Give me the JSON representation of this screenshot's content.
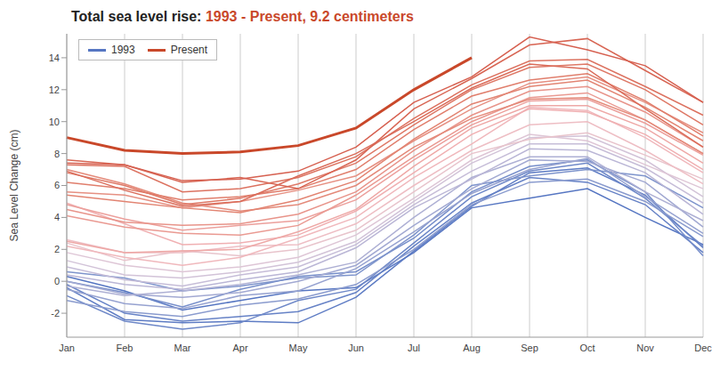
{
  "chart_data": {
    "type": "line",
    "title": "Total sea level rise: 1993 - Present, 9.2 centimeters",
    "y_label": "Sea Level Change (cm)",
    "categories": [
      "Jan",
      "Feb",
      "Mar",
      "Apr",
      "May",
      "Jun",
      "Jul",
      "Aug",
      "Sep",
      "Oct",
      "Nov",
      "Dec"
    ],
    "ylim": [
      -3.5,
      15.5
    ],
    "yticks": [
      -2,
      0,
      2,
      4,
      6,
      8,
      10,
      12,
      14
    ],
    "grid": true,
    "legend": "upper left",
    "series": [
      {
        "name": "1993",
        "color": "#5676c2",
        "values": [
          0.3,
          -0.6,
          -1.8,
          -1.2,
          -0.6,
          -0.4,
          1.8,
          4.6,
          5.2,
          5.8,
          4.0,
          2.3
        ]
      },
      {
        "color": "#5e7cc4",
        "values": [
          -0.4,
          -2.4,
          -2.6,
          -2.5,
          -2.6,
          -1.0,
          1.9,
          4.7,
          6.8,
          7.1,
          5.4,
          2.1
        ]
      },
      {
        "color": "#6682c6",
        "values": [
          -0.2,
          -2.0,
          -2.5,
          -2.2,
          -1.9,
          -0.7,
          2.2,
          4.9,
          6.5,
          6.2,
          4.8,
          1.8
        ]
      },
      {
        "color": "#6e88c8",
        "values": [
          -0.9,
          -2.5,
          -3.0,
          -2.6,
          -1.2,
          -0.5,
          2.4,
          5.3,
          6.9,
          7.4,
          5.2,
          2.2
        ]
      },
      {
        "color": "#768eca",
        "values": [
          0.0,
          -0.7,
          -1.6,
          -0.5,
          0.3,
          0.6,
          2.7,
          5.6,
          7.2,
          7.6,
          5.6,
          1.6
        ]
      },
      {
        "color": "#7e94cc",
        "values": [
          0.6,
          0.2,
          -0.6,
          -0.3,
          0.2,
          0.4,
          2.9,
          6.0,
          6.6,
          7.0,
          6.6,
          4.6
        ]
      },
      {
        "color": "#8a9bce",
        "values": [
          -1.2,
          -1.9,
          -2.2,
          -1.5,
          -1.1,
          -0.2,
          2.0,
          4.8,
          6.2,
          6.4,
          5.0,
          2.8
        ]
      },
      {
        "color": "#96a2d0",
        "values": [
          -0.5,
          -1.4,
          -1.7,
          -0.9,
          -0.6,
          0.8,
          3.1,
          5.5,
          7.0,
          7.7,
          5.3,
          3.0
        ]
      },
      {
        "color": "#a2a9d2",
        "values": [
          0.0,
          -0.8,
          -1.0,
          -0.7,
          0.0,
          1.0,
          3.5,
          5.8,
          7.6,
          7.5,
          6.2,
          3.4
        ]
      },
      {
        "color": "#aeb0d4",
        "values": [
          -0.3,
          -0.9,
          -0.6,
          -0.2,
          0.4,
          1.2,
          4.0,
          6.5,
          7.8,
          7.8,
          5.6,
          3.8
        ]
      },
      {
        "color": "#bab6d6",
        "values": [
          0.4,
          -0.2,
          -0.5,
          0.1,
          0.6,
          2.1,
          4.6,
          6.4,
          8.3,
          8.2,
          6.8,
          4.2
        ]
      },
      {
        "color": "#c6bdd8",
        "values": [
          0.9,
          0.1,
          -0.3,
          0.4,
          0.9,
          2.3,
          4.8,
          6.9,
          8.6,
          8.6,
          7.1,
          4.9
        ]
      },
      {
        "color": "#d2c3d8",
        "values": [
          1.3,
          0.4,
          0.2,
          0.6,
          1.2,
          2.5,
          5.0,
          7.4,
          9.0,
          9.1,
          7.6,
          5.3
        ]
      },
      {
        "color": "#dec6d6",
        "values": [
          1.8,
          1.0,
          0.6,
          0.9,
          1.5,
          2.9,
          5.2,
          7.6,
          9.2,
          8.8,
          7.3,
          5.8
        ]
      },
      {
        "color": "#e8c4cc",
        "values": [
          2.4,
          1.3,
          1.9,
          1.6,
          2.0,
          3.2,
          5.6,
          8.0,
          8.9,
          9.3,
          7.9,
          6.4
        ]
      },
      {
        "color": "#eebec4",
        "values": [
          2.6,
          1.8,
          1.8,
          2.2,
          2.3,
          3.6,
          6.0,
          8.2,
          9.8,
          10.0,
          8.2,
          6.1
        ]
      },
      {
        "color": "#f0b8bc",
        "values": [
          2.2,
          1.5,
          1.0,
          1.5,
          2.7,
          4.0,
          6.5,
          8.6,
          10.9,
          10.7,
          9.0,
          6.8
        ]
      },
      {
        "color": "#f0b0b2",
        "values": [
          4.9,
          3.6,
          2.3,
          2.4,
          2.9,
          4.4,
          6.8,
          9.2,
          10.8,
          10.6,
          9.2,
          7.0
        ]
      },
      {
        "color": "#eea8a6",
        "values": [
          2.5,
          1.8,
          1.9,
          2.0,
          3.1,
          4.5,
          7.2,
          9.6,
          11.0,
          11.0,
          9.6,
          7.4
        ]
      },
      {
        "color": "#eca09c",
        "values": [
          4.8,
          3.9,
          3.2,
          3.5,
          3.8,
          5.1,
          7.6,
          9.8,
          11.3,
          11.4,
          9.9,
          7.9
        ]
      },
      {
        "color": "#ea9a92",
        "values": [
          4.1,
          3.4,
          3.0,
          2.9,
          3.5,
          5.4,
          7.8,
          10.0,
          11.5,
          11.8,
          10.1,
          8.0
        ]
      },
      {
        "color": "#e8948a",
        "values": [
          4.5,
          3.7,
          3.5,
          3.6,
          4.2,
          5.6,
          8.2,
          10.4,
          11.9,
          12.2,
          10.6,
          8.4
        ]
      },
      {
        "color": "#e69082",
        "values": [
          5.6,
          5.4,
          4.6,
          5.0,
          5.7,
          6.6,
          8.8,
          10.8,
          12.4,
          12.8,
          11.2,
          9.3
        ]
      },
      {
        "color": "#e48a7a",
        "values": [
          7.0,
          6.1,
          4.9,
          4.4,
          4.8,
          6.0,
          8.4,
          10.2,
          11.4,
          11.5,
          10.1,
          8.0
        ]
      },
      {
        "color": "#e28472",
        "values": [
          5.4,
          5.0,
          4.6,
          4.3,
          5.1,
          6.3,
          8.9,
          11.1,
          12.2,
          12.6,
          10.9,
          8.8
        ]
      },
      {
        "color": "#e07e6c",
        "values": [
          6.2,
          5.8,
          5.1,
          5.3,
          5.8,
          7.0,
          9.5,
          11.6,
          12.6,
          13.0,
          11.3,
          9.1
        ]
      },
      {
        "color": "#de7866",
        "values": [
          6.8,
          6.0,
          4.8,
          5.2,
          6.1,
          7.4,
          9.8,
          12.0,
          13.4,
          13.6,
          12.0,
          9.8
        ]
      },
      {
        "color": "#dc7260",
        "values": [
          7.3,
          7.2,
          5.6,
          5.8,
          6.5,
          7.8,
          10.2,
          12.3,
          13.8,
          13.9,
          12.2,
          10.4
        ]
      },
      {
        "color": "#da6c5a",
        "values": [
          6.9,
          5.7,
          4.7,
          5.0,
          6.6,
          8.0,
          10.0,
          12.1,
          13.6,
          13.3,
          10.8,
          8.4
        ]
      },
      {
        "color": "#d86654",
        "values": [
          7.6,
          7.3,
          6.2,
          6.5,
          5.8,
          7.6,
          10.8,
          12.7,
          14.8,
          15.2,
          13.2,
          11.2
        ]
      },
      {
        "color": "#d66050",
        "values": [
          7.4,
          7.3,
          6.3,
          6.4,
          6.9,
          8.4,
          11.2,
          12.8,
          15.3,
          14.5,
          13.5,
          11.2
        ]
      },
      {
        "name": "Present",
        "color": "#c9482a",
        "values": [
          9.0,
          8.2,
          8.0,
          8.1,
          8.5,
          9.6,
          12.0,
          14.0,
          null,
          null,
          null,
          null
        ]
      }
    ]
  }
}
